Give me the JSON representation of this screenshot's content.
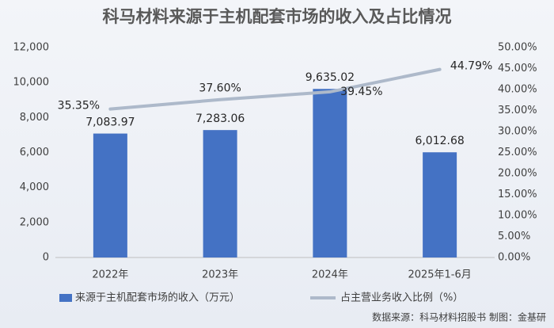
{
  "chart_data": {
    "type": "bar-line",
    "title": "科马材料来源于主机配套市场的收入及占比情况",
    "categories": [
      "2022年",
      "2023年",
      "2024年",
      "2025年1-6月"
    ],
    "series": [
      {
        "name": "来源于主机配套市场的收入（万元）",
        "type": "bar",
        "color": "#4472c4",
        "values": [
          7083.97,
          7283.06,
          9635.02,
          6012.68
        ],
        "value_labels": [
          "7,083.97",
          "7,283.06",
          "9,635.02",
          "6,012.68"
        ]
      },
      {
        "name": "占主营业务收入比例（%）",
        "type": "line",
        "axis": "y2",
        "color": "#adb9ca",
        "values": [
          35.35,
          37.6,
          39.45,
          44.79
        ],
        "value_labels": [
          "35.35%",
          "37.60%",
          "39.45%",
          "44.79%"
        ]
      }
    ],
    "ylim": [
      0,
      12000
    ],
    "yticks": [
      0,
      {
        "value": 2000,
        "label": "2,000"
      },
      {
        "value": 4000,
        "label": "4,000"
      },
      {
        "value": 6000,
        "label": "6,000"
      },
      {
        "value": 8000,
        "label": "8,000"
      },
      {
        "value": 10000,
        "label": "10,000"
      },
      {
        "value": 12000,
        "label": "12,000"
      }
    ],
    "y2lim": [
      0,
      50
    ],
    "y2ticks": [
      {
        "value": 0,
        "label": "0.00%"
      },
      {
        "value": 5,
        "label": "5.00%"
      },
      {
        "value": 10,
        "label": "10.00%"
      },
      {
        "value": 15,
        "label": "15.00%"
      },
      {
        "value": 20,
        "label": "20.00%"
      },
      {
        "value": 25,
        "label": "25.00%"
      },
      {
        "value": 30,
        "label": "30.00%"
      },
      {
        "value": 35,
        "label": "35.00%"
      },
      {
        "value": 40,
        "label": "40.00%"
      },
      {
        "value": 45,
        "label": "45.00%"
      },
      {
        "value": 50,
        "label": "50.00%"
      }
    ],
    "source": "数据来源：科马材料招股书  制图：金基研"
  }
}
